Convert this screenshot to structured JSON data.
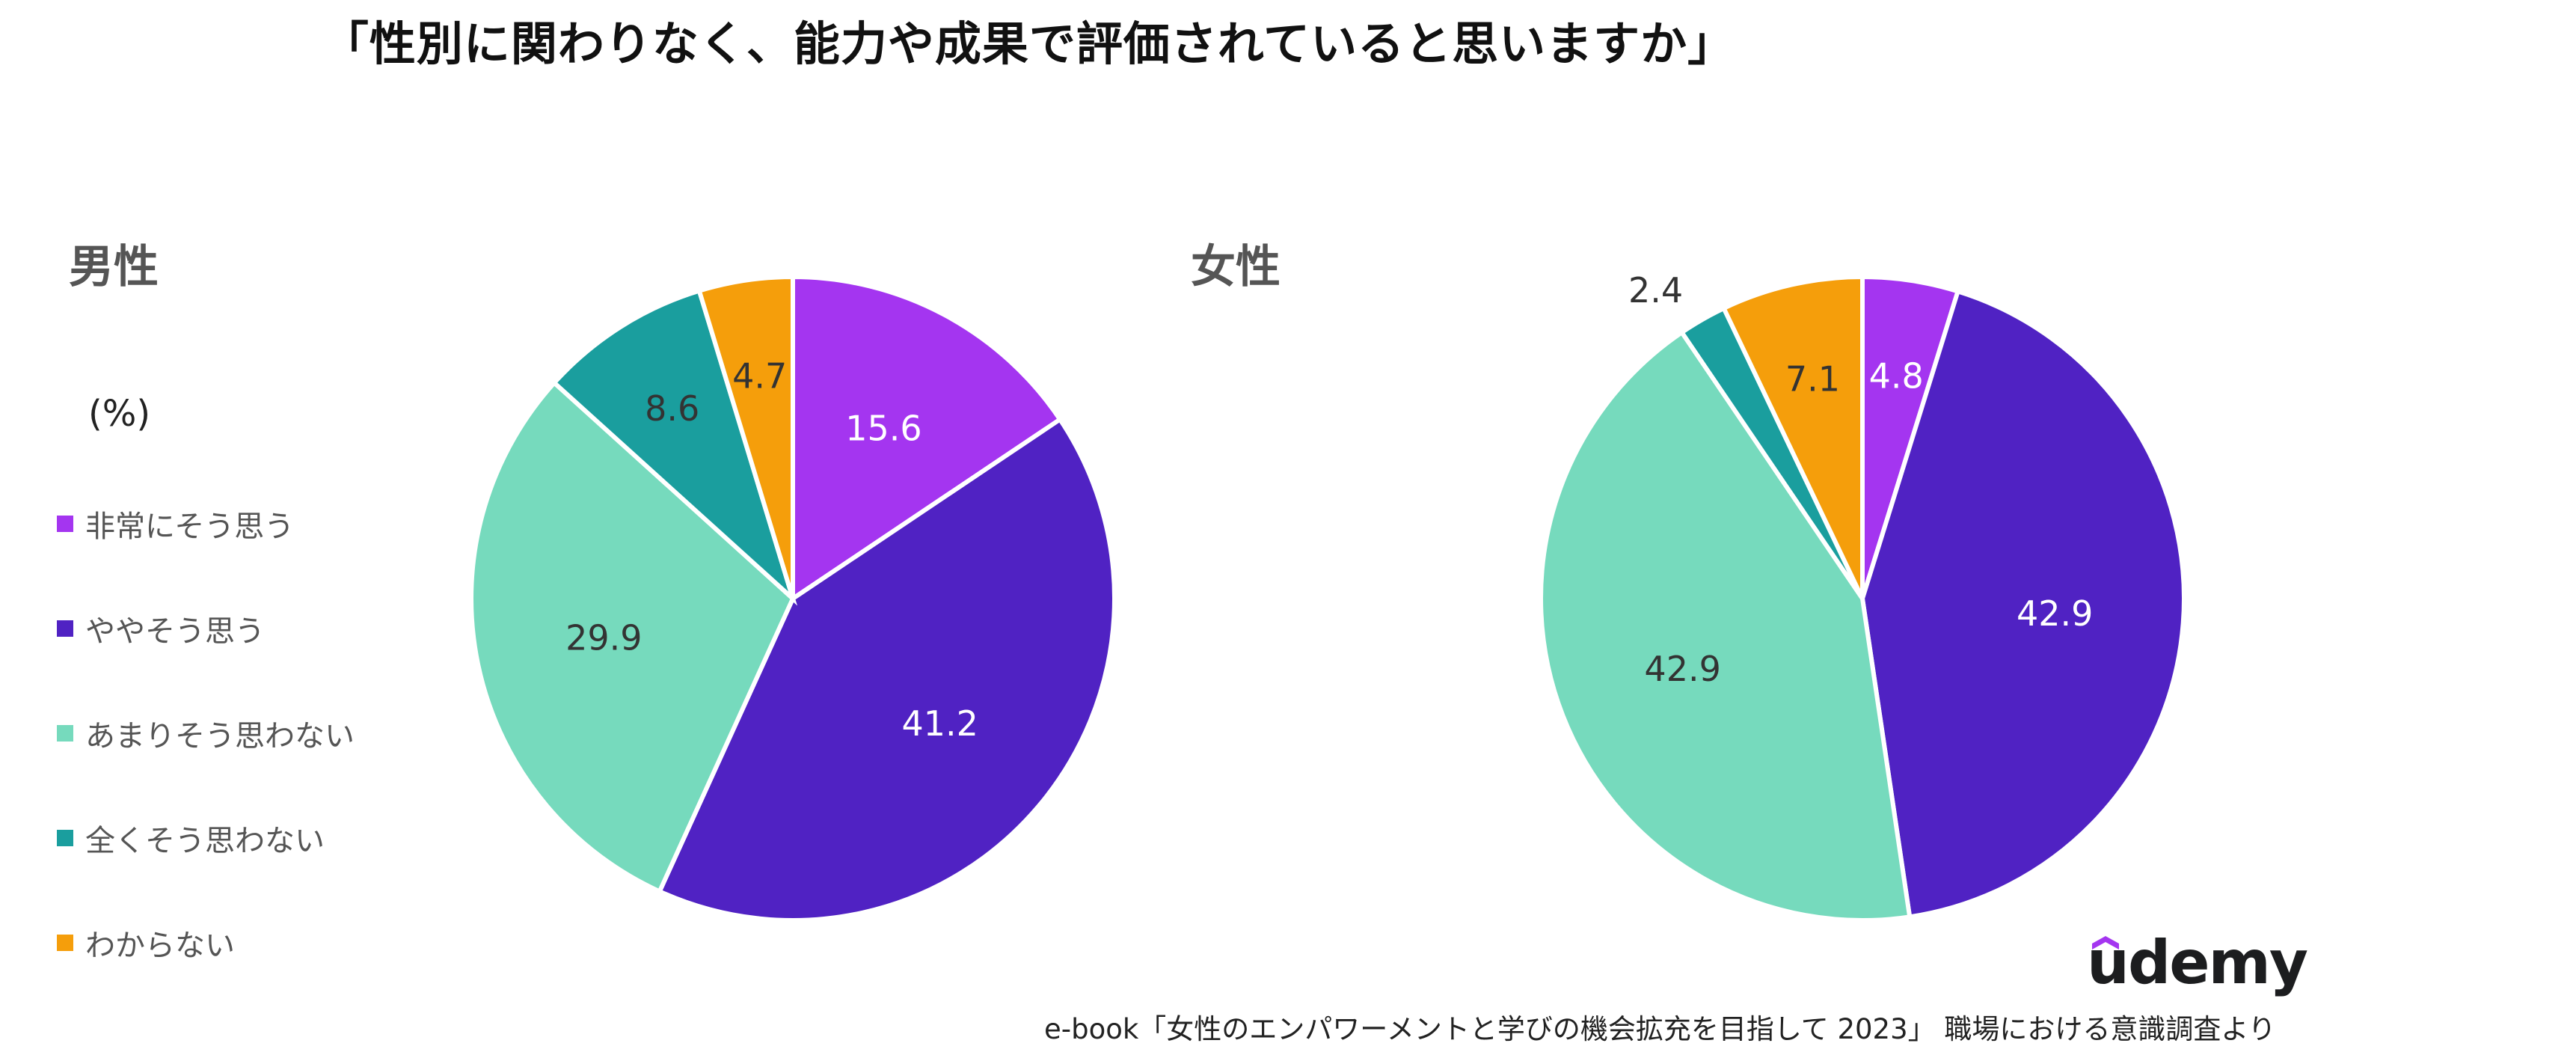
{
  "title": "「性別に関わりなく、能力や成果で評価されていると思いますか」",
  "unit_label": "(%)",
  "colors": {
    "very_much": "#a435f0",
    "somewhat": "#5022c3",
    "not_really": "#76dabd",
    "not_at_all": "#1a9e9e",
    "unknown": "#f59e0b"
  },
  "legend": [
    {
      "label": "非常にそう思う",
      "color": "#a435f0"
    },
    {
      "label": "ややそう思う",
      "color": "#5022c3"
    },
    {
      "label": "あまりそう思わない",
      "color": "#76dabd"
    },
    {
      "label": "全くそう思わない",
      "color": "#1a9e9e"
    },
    {
      "label": "わからない",
      "color": "#f59e0b"
    }
  ],
  "chart_data": [
    {
      "type": "pie",
      "title": "男性",
      "categories": [
        "非常にそう思う",
        "ややそう思う",
        "あまりそう思わない",
        "全くそう思わない",
        "わからない"
      ],
      "values": [
        15.6,
        41.2,
        29.9,
        8.6,
        4.7
      ],
      "labels": [
        "15.6",
        "41.2",
        "29.9",
        "8.6",
        "4.7"
      ],
      "colors": [
        "#a435f0",
        "#5022c3",
        "#76dabd",
        "#1a9e9e",
        "#f59e0b"
      ],
      "label_colors": [
        "#ffffff",
        "#ffffff",
        "#333333",
        "#333333",
        "#333333"
      ],
      "start": "12 o'clock",
      "direction": "clockwise"
    },
    {
      "type": "pie",
      "title": "女性",
      "categories": [
        "非常にそう思う",
        "ややそう思う",
        "あまりそう思わない",
        "全くそう思わない",
        "わからない"
      ],
      "values": [
        4.8,
        42.9,
        42.9,
        2.4,
        7.1
      ],
      "labels": [
        "4.8",
        "42.9",
        "42.9",
        "2.4",
        "7.1"
      ],
      "colors": [
        "#a435f0",
        "#5022c3",
        "#76dabd",
        "#1a9e9e",
        "#f59e0b"
      ],
      "label_colors": [
        "#ffffff",
        "#ffffff",
        "#333333",
        "#333333",
        "#333333"
      ],
      "label_outside": [
        false,
        false,
        false,
        true,
        false
      ],
      "start": "12 o'clock",
      "direction": "clockwise"
    }
  ],
  "logo_text": "udemy",
  "source": "e-book「女性のエンパワーメントと学びの機会拡充を目指して 2023」 職場における意識調査より"
}
